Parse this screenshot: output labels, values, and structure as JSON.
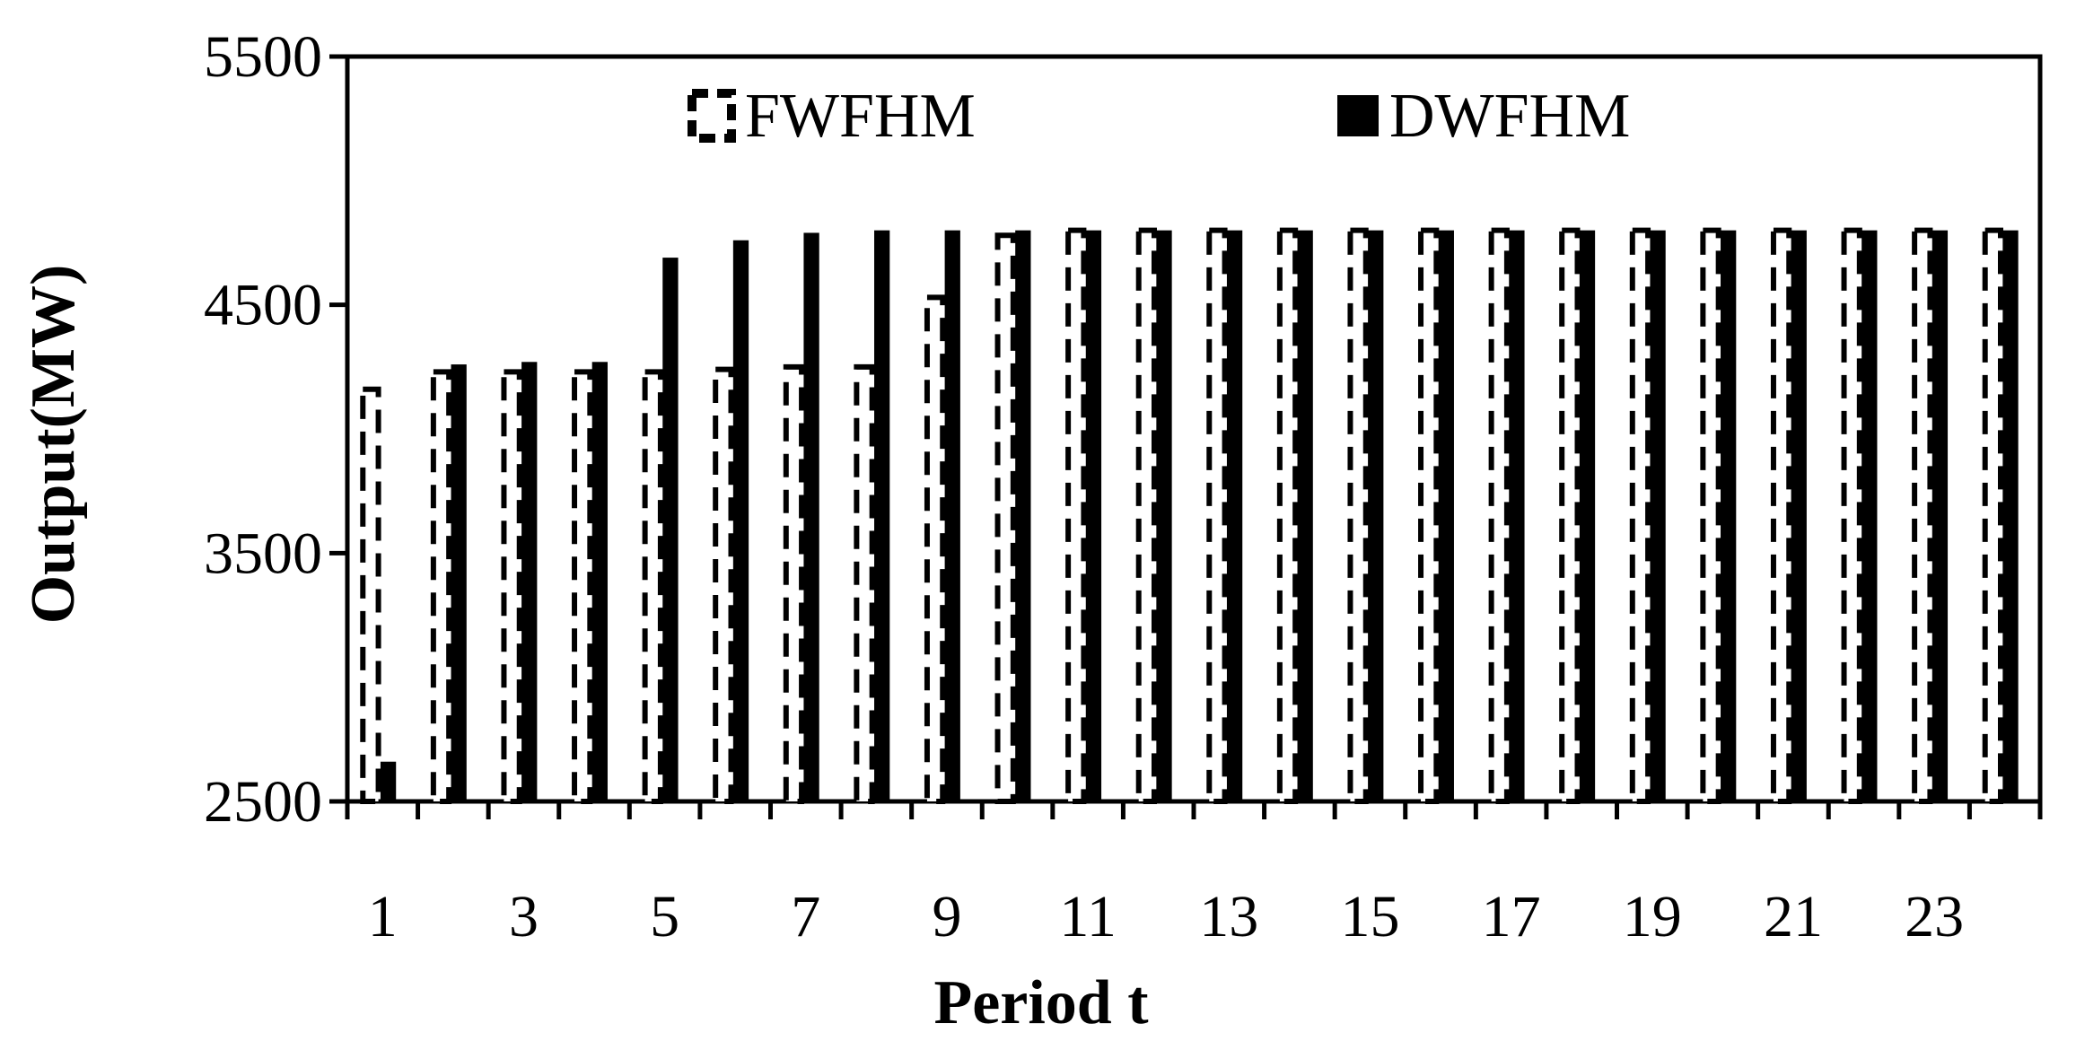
{
  "chart_data": {
    "type": "bar",
    "title": "",
    "xlabel": "Period t",
    "ylabel": "Output(MW)",
    "ylim": [
      2500,
      5500
    ],
    "yticks": [
      2500,
      3500,
      4500,
      5500
    ],
    "categories": [
      "1",
      "2",
      "3",
      "4",
      "5",
      "6",
      "7",
      "8",
      "9",
      "10",
      "11",
      "12",
      "13",
      "14",
      "15",
      "16",
      "17",
      "18",
      "19",
      "20",
      "21",
      "22",
      "23",
      "24"
    ],
    "xtick_labels": [
      "1",
      "3",
      "5",
      "7",
      "9",
      "11",
      "13",
      "15",
      "17",
      "19",
      "21",
      "23"
    ],
    "legend_position": "top",
    "grid": false,
    "series": [
      {
        "name": "FWFHM",
        "style": "dashed-outline",
        "color": "#000000",
        "values": [
          4160,
          4230,
          4230,
          4230,
          4230,
          4240,
          4250,
          4250,
          4530,
          4780,
          4800,
          4800,
          4800,
          4800,
          4800,
          4800,
          4800,
          4800,
          4800,
          4800,
          4800,
          4800,
          4800,
          4800
        ]
      },
      {
        "name": "DWFHM",
        "style": "solid",
        "color": "#000000",
        "values": [
          2660,
          4260,
          4270,
          4270,
          4690,
          4760,
          4790,
          4800,
          4800,
          4800,
          4800,
          4800,
          4800,
          4800,
          4800,
          4800,
          4800,
          4800,
          4800,
          4800,
          4800,
          4800,
          4800,
          4800
        ]
      }
    ]
  }
}
